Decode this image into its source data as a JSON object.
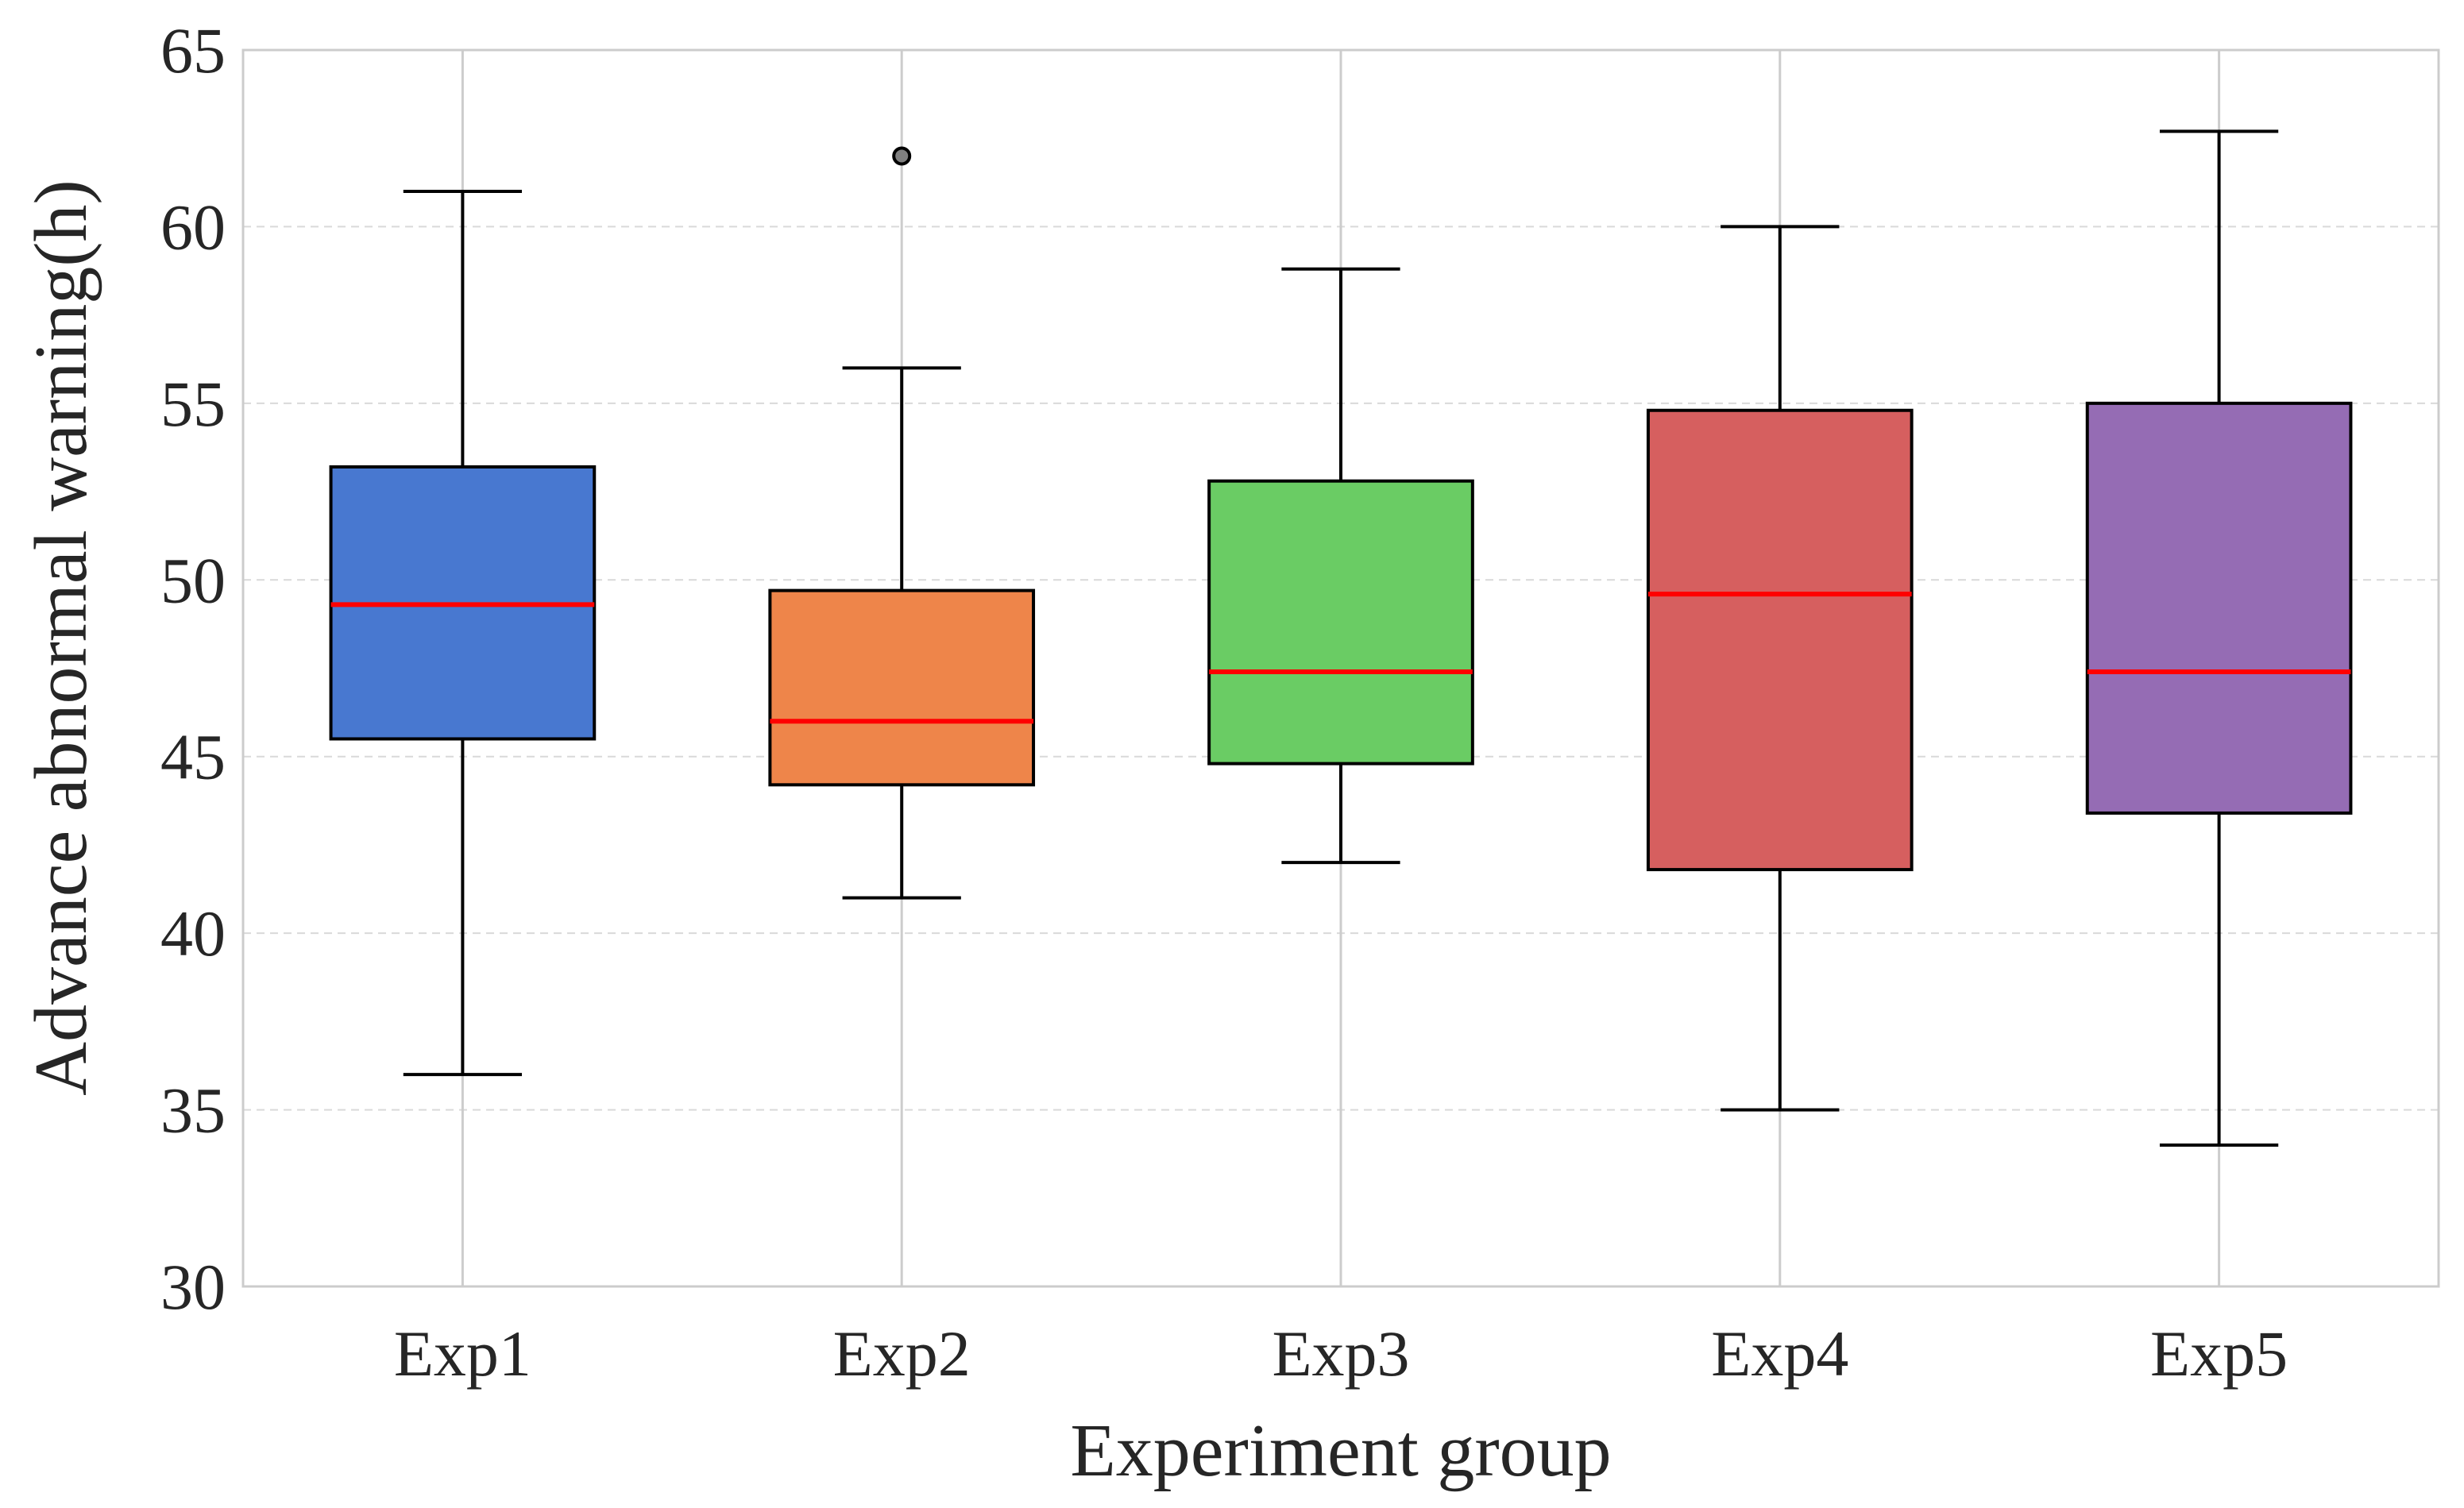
{
  "chart_data": {
    "type": "box",
    "xlabel": "Experiment group",
    "ylabel": "Advance abnormal warning(h)",
    "ylim": [
      30,
      65
    ],
    "yticks": [
      "30",
      "35",
      "40",
      "45",
      "50",
      "55",
      "60",
      "65"
    ],
    "grid": true,
    "categories": [
      "Exp1",
      "Exp2",
      "Exp3",
      "Exp4",
      "Exp5"
    ],
    "boxes": [
      {
        "category": "Exp1",
        "whisker_low": 36,
        "q1": 45.5,
        "median": 49.3,
        "q3": 53.2,
        "whisker_high": 61,
        "outliers": [],
        "color": "#4878d0"
      },
      {
        "category": "Exp2",
        "whisker_low": 41,
        "q1": 44.2,
        "median": 46.0,
        "q3": 49.7,
        "whisker_high": 56,
        "outliers": [
          62
        ],
        "color": "#ee854a"
      },
      {
        "category": "Exp3",
        "whisker_low": 42,
        "q1": 44.8,
        "median": 47.4,
        "q3": 52.8,
        "whisker_high": 58.8,
        "outliers": [],
        "color": "#6acc64"
      },
      {
        "category": "Exp4",
        "whisker_low": 35,
        "q1": 41.8,
        "median": 49.6,
        "q3": 54.8,
        "whisker_high": 60,
        "outliers": [],
        "color": "#d65f5f"
      },
      {
        "category": "Exp5",
        "whisker_low": 34,
        "q1": 43.4,
        "median": 47.4,
        "q3": 55.0,
        "whisker_high": 62.7,
        "outliers": [],
        "color": "#956cb4"
      }
    ],
    "median_color": "#ff0000",
    "grid_color": "#d9d9d9",
    "axis_color": "#cccccc"
  }
}
